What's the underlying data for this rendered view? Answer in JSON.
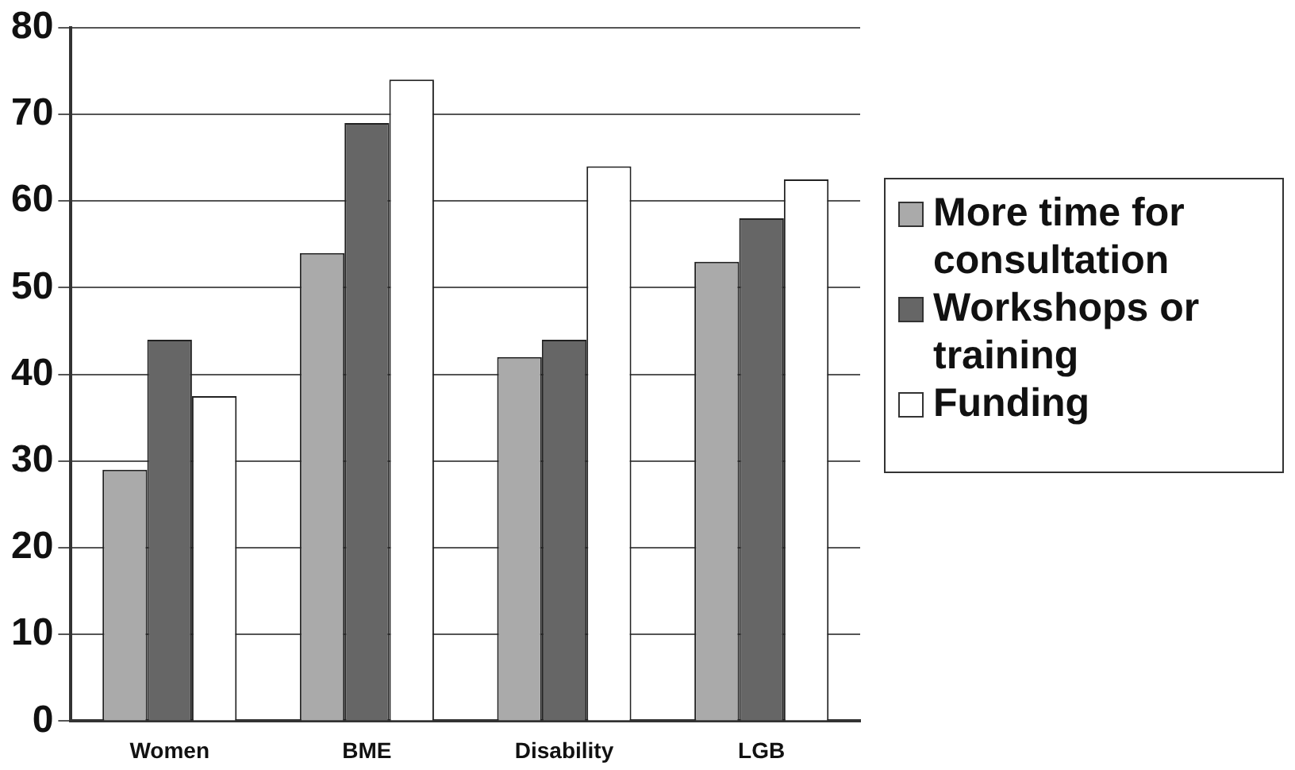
{
  "chart_data": {
    "type": "bar",
    "categories": [
      "Women",
      "BME",
      "Disability",
      "LGB"
    ],
    "series": [
      {
        "name": "More time for consultation",
        "color": "#aaaaaa",
        "values": [
          29,
          54,
          42,
          53
        ]
      },
      {
        "name": "Workshops or training",
        "color": "#666666",
        "values": [
          44,
          69,
          44,
          58
        ]
      },
      {
        "name": "Funding",
        "color": "#ffffff",
        "values": [
          37.5,
          74,
          64,
          62.5
        ]
      }
    ],
    "ylim": [
      0,
      80
    ],
    "yticks": [
      0,
      10,
      20,
      30,
      40,
      50,
      60,
      70,
      80
    ],
    "grid": "y",
    "legend": "right"
  }
}
